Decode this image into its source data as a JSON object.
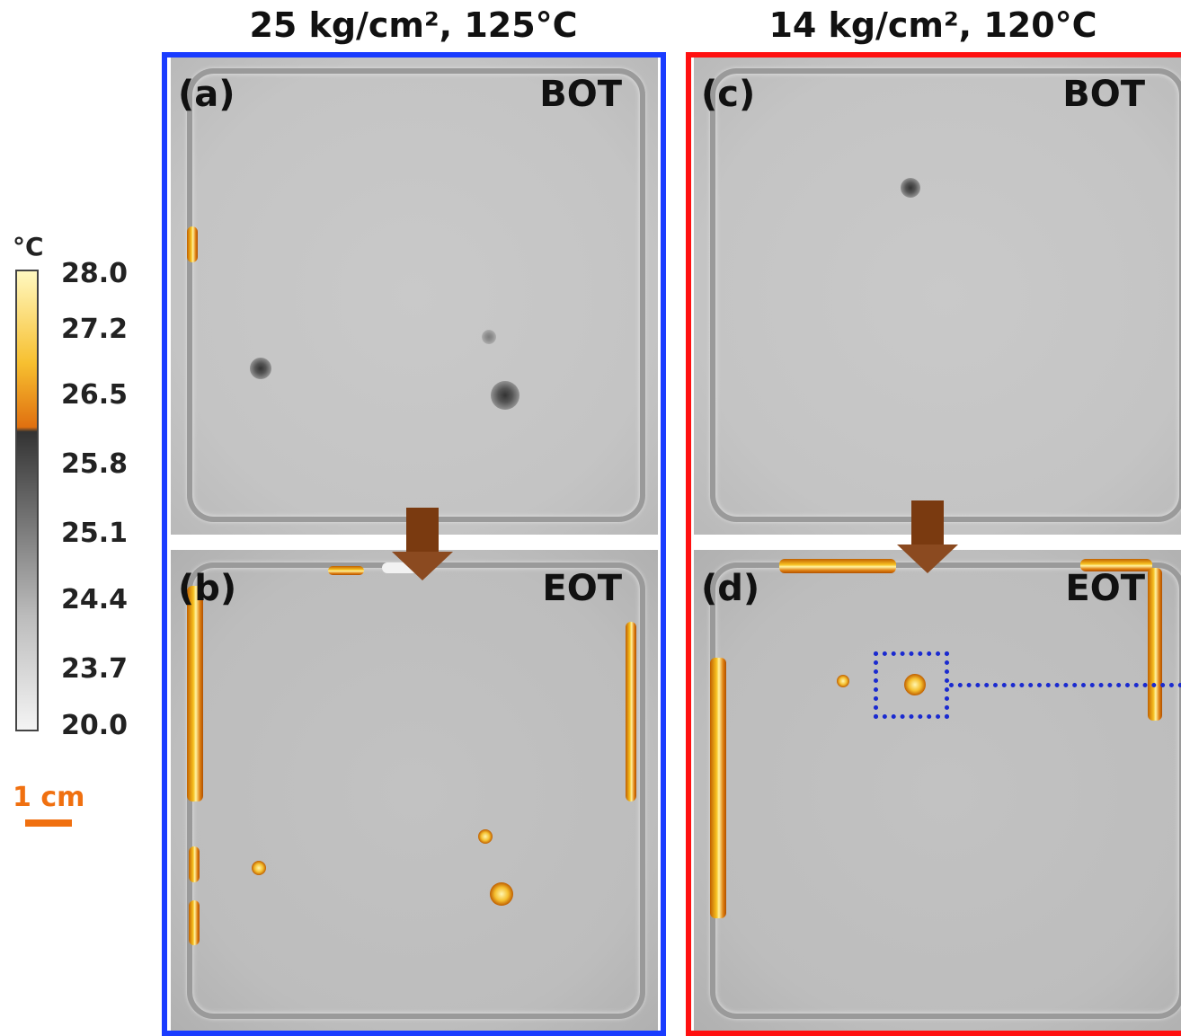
{
  "panels_header": {
    "left_title": "25 kg/cm², 125°C",
    "right_title": "14 kg/cm², 120°C"
  },
  "panels": [
    {
      "label": "(a)",
      "stage": "BOT"
    },
    {
      "label": "(b)",
      "stage": "EOT"
    },
    {
      "label": "(c)",
      "stage": "BOT"
    },
    {
      "label": "(d)",
      "stage": "EOT"
    }
  ],
  "colorbar": {
    "unit": "°C",
    "ticks": [
      "28.0",
      "27.2",
      "26.5",
      "25.8",
      "25.1",
      "24.4",
      "23.7",
      "20.0"
    ]
  },
  "scale_bar": {
    "label": "1 cm"
  }
}
